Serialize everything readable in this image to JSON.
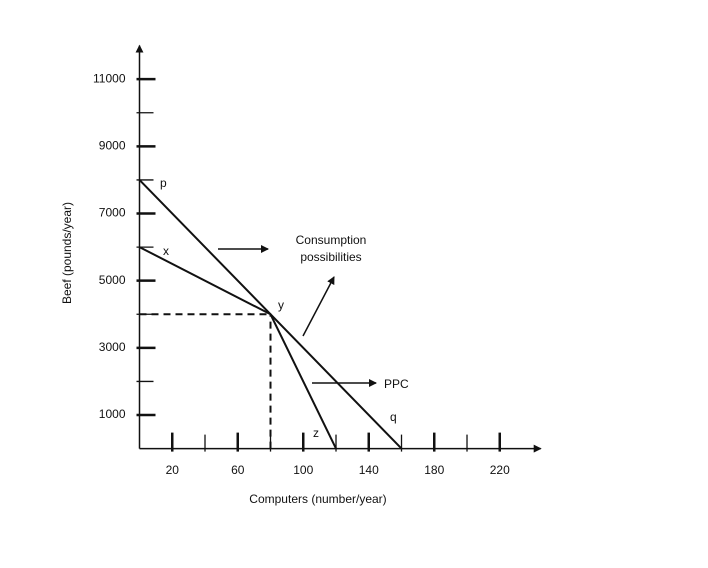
{
  "chart_data": {
    "type": "line",
    "xlabel": "Computers (number/year)",
    "ylabel": "Beef (pounds/year)",
    "xlim": [
      0,
      245
    ],
    "ylim": [
      0,
      12000
    ],
    "xticks": [
      20,
      60,
      100,
      140,
      180,
      220
    ],
    "x_minor_ticks": [
      40,
      80,
      120,
      160,
      200
    ],
    "yticks": [
      1000,
      3000,
      5000,
      7000,
      9000,
      11000
    ],
    "y_minor_ticks": [
      2000,
      4000,
      6000,
      8000,
      10000
    ],
    "series": [
      {
        "color": "#111111",
        "x": [
          0,
          160
        ],
        "values": [
          8000,
          0
        ]
      },
      {
        "color": "#111111",
        "x": [
          0,
          80,
          120
        ],
        "values": [
          6000,
          4000,
          0
        ]
      }
    ],
    "annotations": {
      "p": "p",
      "x": "x",
      "y": "y",
      "z": "z",
      "q": "q",
      "consumption_1": "Consumption",
      "consumption_2": "possibilities",
      "ppc": "PPC"
    }
  }
}
